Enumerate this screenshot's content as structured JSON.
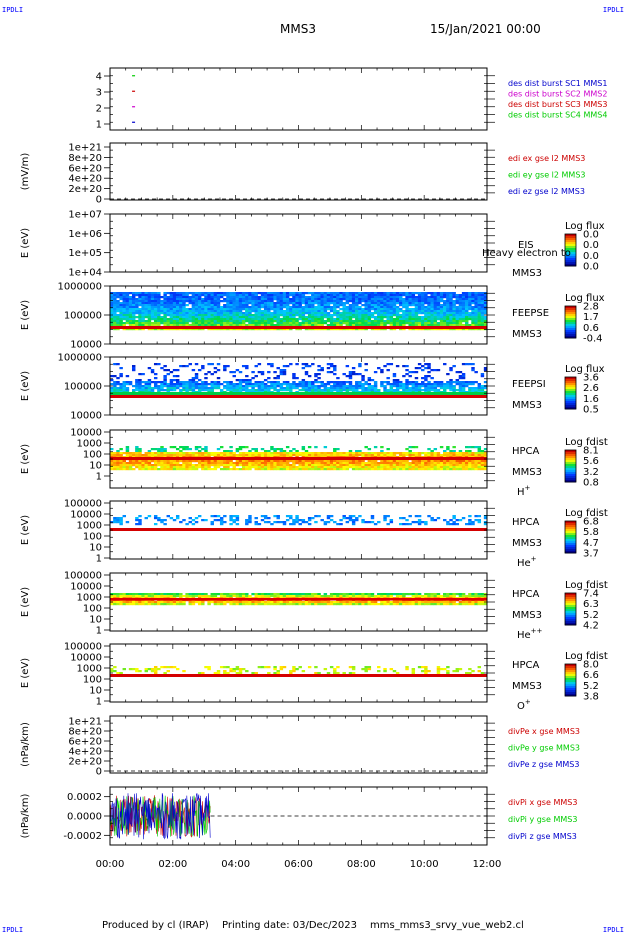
{
  "corners": {
    "tl": "IPDLI",
    "tr": "IPDLI",
    "bl": "IPDLI",
    "br": "IPDLI"
  },
  "header": {
    "spacecraft": "MMS3",
    "date": "15/Jan/2021 00:00"
  },
  "footer": {
    "produced_by": "Produced by cl (IRAP)",
    "printing_date": "Printing date: 03/Dec/2023",
    "script_name": "mms_mms3_srvy_vue_web2.cl"
  },
  "time_axis": {
    "ticks": [
      "00:00",
      "02:00",
      "04:00",
      "06:00",
      "08:00",
      "10:00",
      "12:00"
    ],
    "range_hours": [
      0,
      12
    ]
  },
  "chart_data": [
    {
      "id": "burst",
      "type": "scatter",
      "ylabel": "",
      "yticks": [
        "4",
        "3",
        "2",
        "1"
      ],
      "ylim": [
        0.5,
        4.5
      ],
      "legend": [
        {
          "text": "des dist burst SC1 MMS1",
          "color": "#0000cc"
        },
        {
          "text": "des dist burst SC2 MMS2",
          "color": "#cc00cc"
        },
        {
          "text": "des dist burst SC3 MMS3",
          "color": "#cc0000"
        },
        {
          "text": "des dist burst SC4 MMS4",
          "color": "#00cc00"
        }
      ],
      "series": [
        {
          "name": "SC4",
          "color": "#00cc00",
          "y": 4,
          "x_hours": [
            0.75
          ]
        },
        {
          "name": "SC3",
          "color": "#cc0000",
          "y": 3,
          "x_hours": [
            0.75
          ]
        },
        {
          "name": "SC2",
          "color": "#cc00cc",
          "y": 2,
          "x_hours": [
            0.75
          ]
        },
        {
          "name": "SC1",
          "color": "#0000cc",
          "y": 1,
          "x_hours": [
            0.75
          ]
        }
      ]
    },
    {
      "id": "edi",
      "type": "line",
      "ylabel": "(mV/m)",
      "yticks": [
        "1e+21",
        "8e+20",
        "6e+20",
        "4e+20",
        "2e+20",
        "0"
      ],
      "ylim": [
        0,
        1.1e+21
      ],
      "legend": [
        {
          "text": "edi ex gse l2 MMS3",
          "color": "#cc0000"
        },
        {
          "text": "edi ey gse l2 MMS3",
          "color": "#00cc00"
        },
        {
          "text": "edi ez gse l2 MMS3",
          "color": "#0000cc"
        }
      ]
    },
    {
      "id": "eis",
      "type": "heatmap",
      "ylabel": "E (eV)",
      "yticks": [
        "1e+07",
        "1e+06",
        "1e+05",
        "1e+04"
      ],
      "instrument": "EIS",
      "overlay_text": "Heavy electron to",
      "probe": "MMS3",
      "colorbar_title": "Log flux",
      "colorbar_ticks": [
        "0.0",
        "0.0",
        "0.0",
        "0.0"
      ]
    },
    {
      "id": "feepse",
      "type": "heatmap",
      "ylabel": "E (eV)",
      "yticks": [
        "1000000",
        "100000",
        "10000"
      ],
      "instrument": "FEEPSE",
      "probe": "MMS3",
      "colorbar_title": "Log flux",
      "colorbar_ticks": [
        "2.8",
        "1.7",
        "0.6",
        "-0.4"
      ]
    },
    {
      "id": "feepsi",
      "type": "heatmap",
      "ylabel": "E (eV)",
      "yticks": [
        "1000000",
        "100000",
        "10000"
      ],
      "instrument": "FEEPSI",
      "probe": "MMS3",
      "colorbar_title": "Log flux",
      "colorbar_ticks": [
        "3.6",
        "2.6",
        "1.6",
        "0.5"
      ]
    },
    {
      "id": "hpca_h",
      "type": "heatmap",
      "ylabel": "E (eV)",
      "yticks": [
        "10000",
        "1000",
        "100",
        "10",
        "1"
      ],
      "instrument": "HPCA",
      "probe": "MMS3",
      "species": "H",
      "species_sup": "+",
      "colorbar_title": "Log fdist",
      "colorbar_ticks": [
        "8.1",
        "5.6",
        "3.2",
        "0.8"
      ]
    },
    {
      "id": "hpca_he",
      "type": "heatmap",
      "ylabel": "E (eV)",
      "yticks": [
        "100000",
        "10000",
        "1000",
        "100",
        "10",
        "1"
      ],
      "instrument": "HPCA",
      "probe": "MMS3",
      "species": "He",
      "species_sup": "+",
      "colorbar_title": "Log fdist",
      "colorbar_ticks": [
        "6.8",
        "5.8",
        "4.7",
        "3.7"
      ]
    },
    {
      "id": "hpca_hepp",
      "type": "heatmap",
      "ylabel": "E (eV)",
      "yticks": [
        "100000",
        "10000",
        "1000",
        "100",
        "10",
        "1"
      ],
      "instrument": "HPCA",
      "probe": "MMS3",
      "species": "He",
      "species_sup": "++",
      "colorbar_title": "Log fdist",
      "colorbar_ticks": [
        "7.4",
        "6.3",
        "5.2",
        "4.2"
      ]
    },
    {
      "id": "hpca_o",
      "type": "heatmap",
      "ylabel": "E (eV)",
      "yticks": [
        "100000",
        "10000",
        "1000",
        "100",
        "10",
        "1"
      ],
      "instrument": "HPCA",
      "probe": "MMS3",
      "species": "O",
      "species_sup": "+",
      "colorbar_title": "Log fdist",
      "colorbar_ticks": [
        "8.0",
        "6.6",
        "5.2",
        "3.8"
      ]
    },
    {
      "id": "divpe",
      "type": "line",
      "ylabel": "(nPa/km)",
      "yticks": [
        "1e+21",
        "8e+20",
        "6e+20",
        "4e+20",
        "2e+20",
        "0"
      ],
      "ylim": [
        0,
        1.1e+21
      ],
      "legend": [
        {
          "text": "divPe x gse MMS3",
          "color": "#cc0000"
        },
        {
          "text": "divPe y gse MMS3",
          "color": "#00cc00"
        },
        {
          "text": "divPe z gse MMS3",
          "color": "#0000cc"
        }
      ]
    },
    {
      "id": "divpi",
      "type": "line",
      "ylabel": "(nPa/km)",
      "yticks": [
        "0.0002",
        "0.0000",
        "-0.0002"
      ],
      "ylim": [
        -0.0003,
        0.0003
      ],
      "data_end_hours": 3.2,
      "legend": [
        {
          "text": "divPi x gse MMS3",
          "color": "#cc0000"
        },
        {
          "text": "divPi y gse MMS3",
          "color": "#00cc00"
        },
        {
          "text": "divPi z gse MMS3",
          "color": "#0000cc"
        }
      ]
    }
  ]
}
